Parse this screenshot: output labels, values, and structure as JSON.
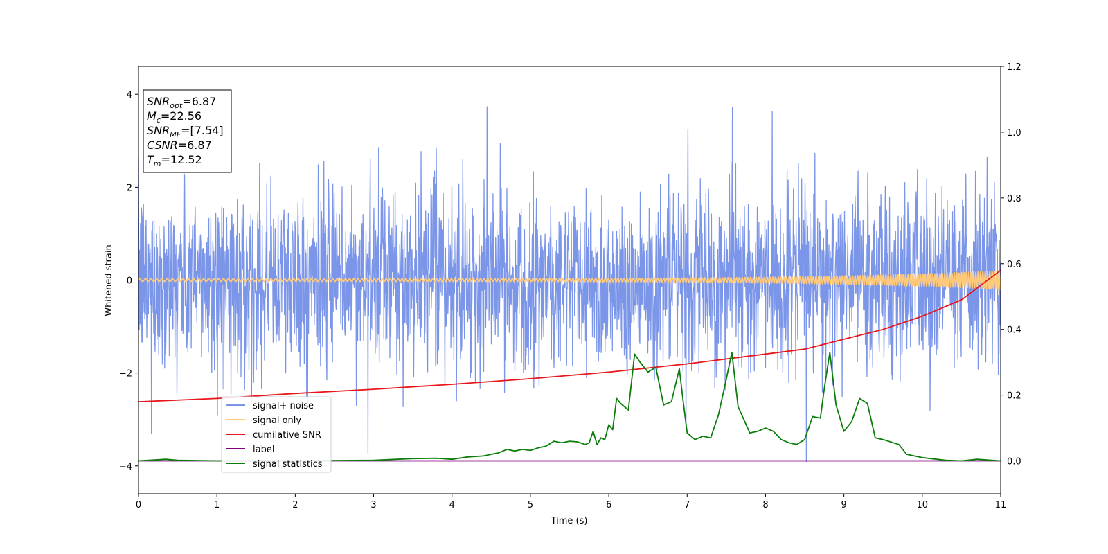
{
  "chart_data": {
    "type": "line",
    "title": "",
    "xlabel": "Time (s)",
    "ylabel": "Whitened strain",
    "xlim": [
      0,
      11
    ],
    "ylim_left": [
      -4.6,
      4.6
    ],
    "ylim_right": [
      -0.1,
      1.2
    ],
    "x_ticks": [
      "0",
      "1",
      "2",
      "3",
      "4",
      "5",
      "6",
      "7",
      "8",
      "9",
      "10",
      "11"
    ],
    "y_ticks_left": [
      "−4",
      "−2",
      "0",
      "2",
      "4"
    ],
    "y_ticks_right": [
      "0.0",
      "0.2",
      "0.4",
      "0.6",
      "0.8",
      "1.0",
      "1.2"
    ],
    "grid": false,
    "legend_position": "lower-left",
    "annotation": {
      "lines": [
        {
          "main": "SNR",
          "sub": "opt",
          "value": "=6.87"
        },
        {
          "main": "M",
          "sub": "c",
          "value": "=22.56"
        },
        {
          "main": "SNR",
          "sub": "MF",
          "value": "=[7.54]"
        },
        {
          "main": "CSNR",
          "sub": "",
          "value": "=6.87"
        },
        {
          "main": "T",
          "sub": "m",
          "value": "=12.52"
        }
      ]
    },
    "series": [
      {
        "name": "signal+ noise",
        "color": "#7b95e9",
        "axis": "left",
        "kind": "noise",
        "std": 0.95,
        "envelope_min": -4.15,
        "envelope_max": 4.2
      },
      {
        "name": "signal only",
        "color": "#ffc97a",
        "axis": "left",
        "kind": "chirp",
        "amplitude_start": 0.03,
        "amplitude_end": 0.2
      },
      {
        "name": "cumilative SNR",
        "color": "#e8151a",
        "axis": "right",
        "x": [
          0,
          1,
          2,
          3,
          4,
          5,
          6,
          7,
          8,
          8.5,
          9,
          9.5,
          10,
          10.5,
          11
        ],
        "values": [
          0.18,
          0.19,
          0.205,
          0.218,
          0.233,
          0.25,
          0.27,
          0.295,
          0.325,
          0.34,
          0.37,
          0.4,
          0.44,
          0.49,
          0.58
        ]
      },
      {
        "name": "label",
        "color": "#800080",
        "axis": "right",
        "x": [
          0,
          11
        ],
        "values": [
          0.0,
          0.0
        ]
      },
      {
        "name": "signal statistics",
        "color": "#0a7d0a",
        "axis": "right",
        "x": [
          0,
          0.35,
          0.5,
          1,
          2,
          3,
          3.5,
          3.8,
          4,
          4.2,
          4.4,
          4.6,
          4.7,
          4.8,
          4.9,
          5.0,
          5.1,
          5.2,
          5.3,
          5.4,
          5.5,
          5.6,
          5.7,
          5.75,
          5.8,
          5.85,
          5.9,
          5.95,
          6.0,
          6.05,
          6.1,
          6.15,
          6.25,
          6.33,
          6.4,
          6.5,
          6.6,
          6.7,
          6.8,
          6.9,
          6.95,
          7.0,
          7.1,
          7.2,
          7.3,
          7.4,
          7.5,
          7.57,
          7.65,
          7.8,
          7.9,
          8.0,
          8.1,
          8.2,
          8.3,
          8.4,
          8.5,
          8.6,
          8.7,
          8.75,
          8.82,
          8.9,
          9.0,
          9.1,
          9.2,
          9.3,
          9.4,
          9.5,
          9.7,
          9.8,
          10.0,
          10.3,
          10.5,
          10.7,
          11
        ],
        "values": [
          0.0,
          0.005,
          0.002,
          0.0,
          0.0,
          0.002,
          0.007,
          0.008,
          0.005,
          0.012,
          0.015,
          0.025,
          0.035,
          0.03,
          0.035,
          0.032,
          0.04,
          0.045,
          0.06,
          0.055,
          0.06,
          0.058,
          0.05,
          0.055,
          0.09,
          0.05,
          0.07,
          0.065,
          0.11,
          0.095,
          0.19,
          0.175,
          0.155,
          0.325,
          0.3,
          0.27,
          0.285,
          0.17,
          0.18,
          0.28,
          0.18,
          0.085,
          0.065,
          0.075,
          0.07,
          0.14,
          0.25,
          0.33,
          0.165,
          0.085,
          0.09,
          0.1,
          0.09,
          0.065,
          0.055,
          0.05,
          0.065,
          0.135,
          0.13,
          0.22,
          0.33,
          0.17,
          0.09,
          0.12,
          0.19,
          0.175,
          0.07,
          0.065,
          0.05,
          0.02,
          0.01,
          0.002,
          0.0,
          0.005,
          0.0
        ]
      }
    ]
  }
}
